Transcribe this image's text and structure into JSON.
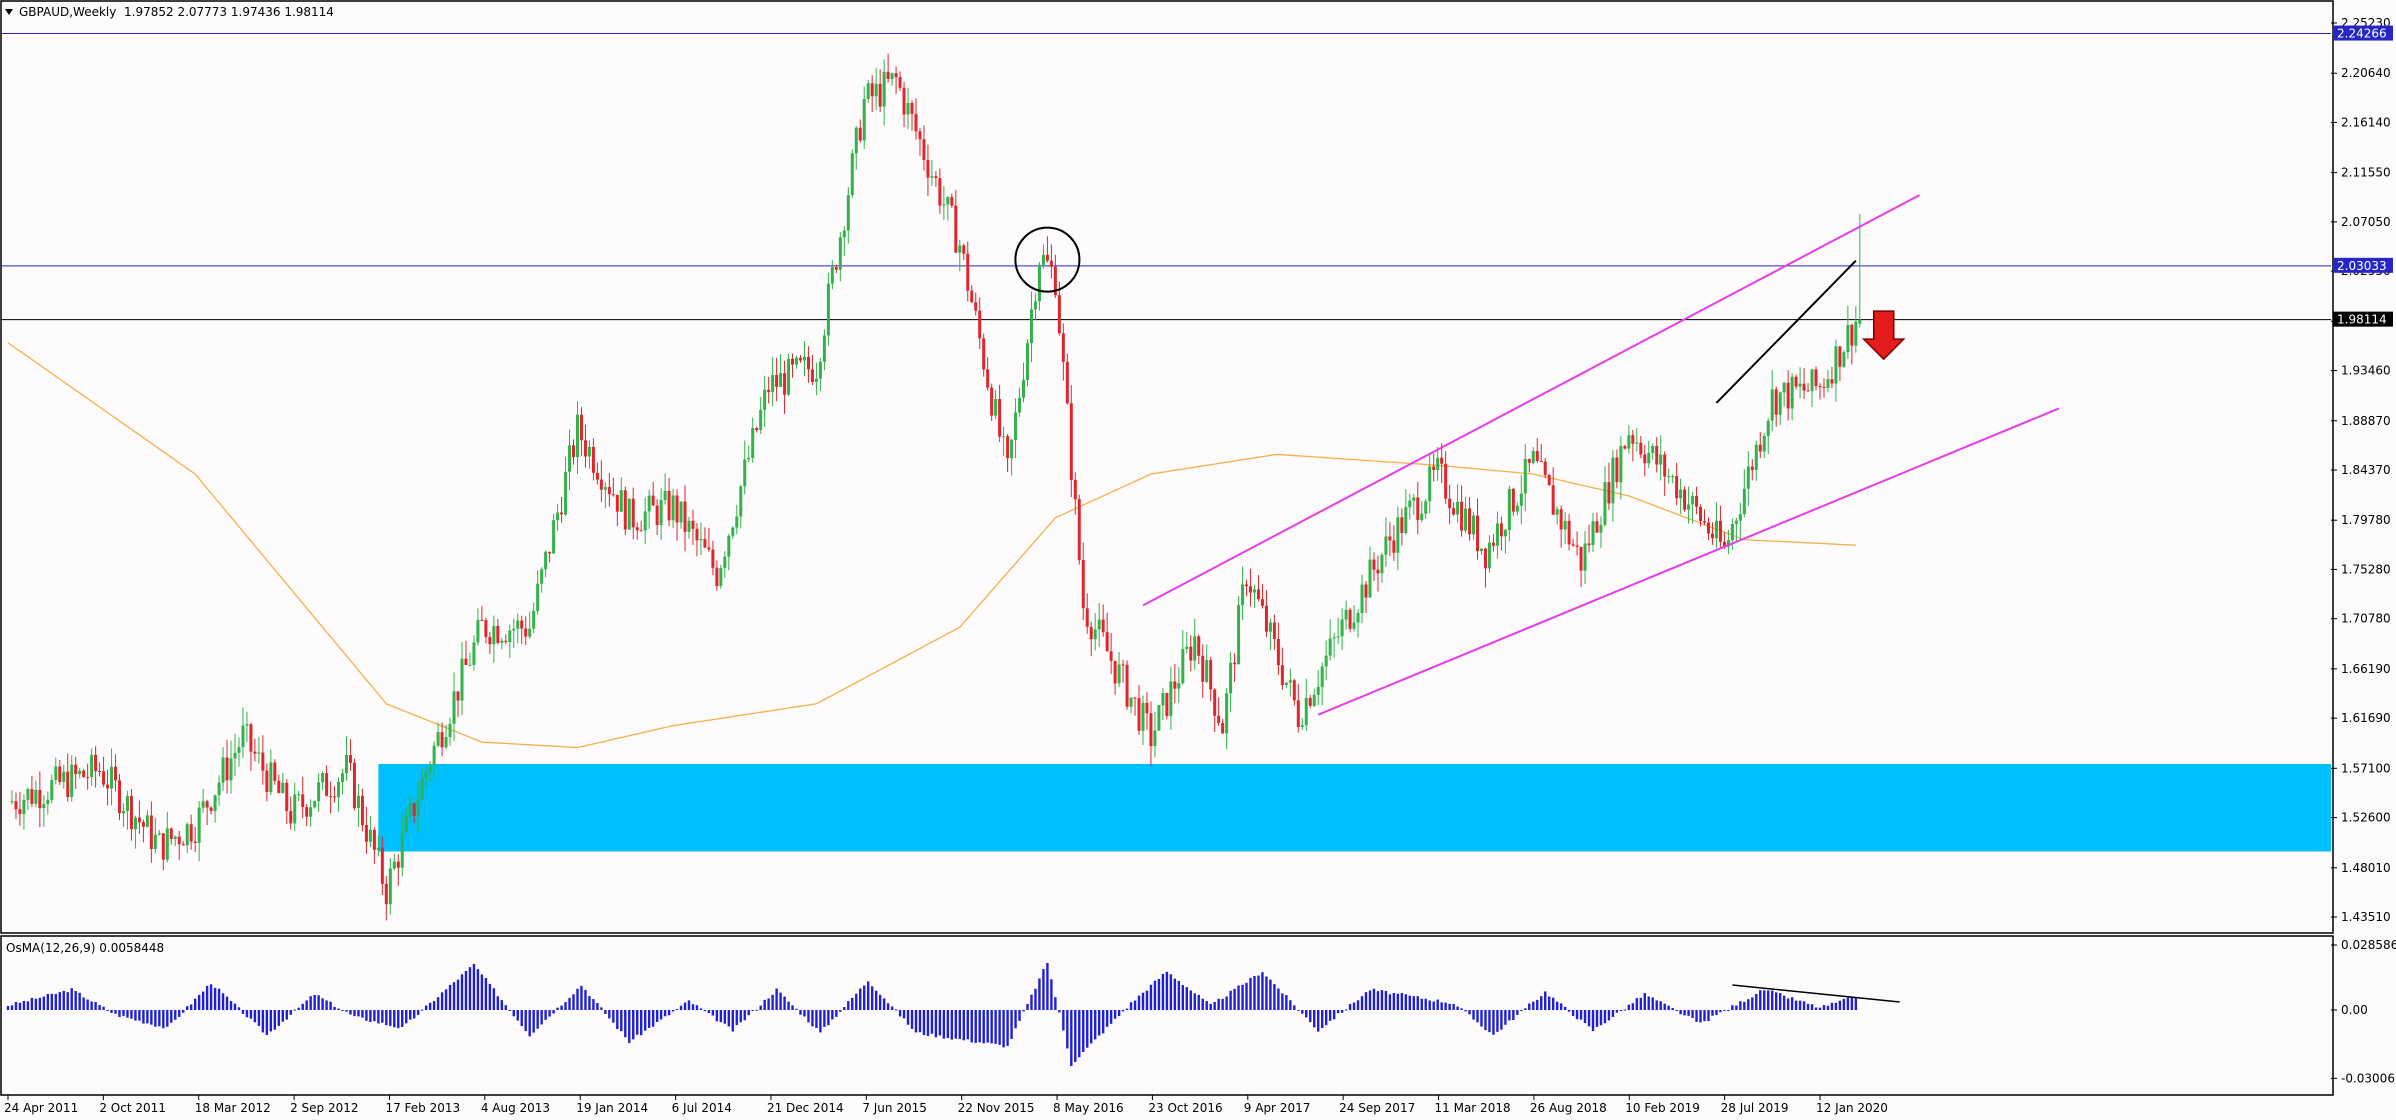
{
  "header": {
    "symbol_timeframe": "GBPAUD,Weekly",
    "ohlc": "1.97852 2.07773 1.97436 1.98114"
  },
  "indicator": {
    "label": "OsMA(12,26,9) 0.0058448"
  },
  "colors": {
    "background": "#fdfbfb",
    "bull": "#2fb34a",
    "bear": "#e0262d",
    "ma": "#f5b04a",
    "channel": "#e53de8",
    "level_blue": "#2626c8",
    "level_black": "#000000",
    "zone": "#00bfff",
    "osma": "#1f1fd8",
    "arrow": "#e51c1c"
  },
  "chart_data": [
    {
      "type": "candlestick",
      "title": "GBPAUD,Weekly",
      "ylim": [
        1.41,
        2.27
      ],
      "y_ticks": [
        "2.25230",
        "2.20640",
        "2.16140",
        "2.11550",
        "2.07050",
        "2.02550",
        "1.97960",
        "1.93460",
        "1.88870",
        "1.84370",
        "1.79780",
        "1.75280",
        "1.70780",
        "1.66190",
        "1.61690",
        "1.57100",
        "1.52600",
        "1.48010",
        "1.43510"
      ],
      "x_ticks": [
        "24 Apr 2011",
        "2 Oct 2011",
        "18 Mar 2012",
        "2 Sep 2012",
        "17 Feb 2013",
        "4 Aug 2013",
        "19 Jan 2014",
        "6 Jul 2014",
        "21 Dec 2014",
        "7 Jun 2015",
        "22 Nov 2015",
        "8 May 2016",
        "23 Oct 2016",
        "9 Apr 2017",
        "24 Sep 2017",
        "11 Mar 2018",
        "26 Aug 2018",
        "10 Feb 2019",
        "28 Jul 2019",
        "12 Jan 2020"
      ],
      "price_path": [
        {
          "date": "2011-04-24",
          "close": 1.54
        },
        {
          "date": "2011-10-02",
          "close": 1.57
        },
        {
          "date": "2012-01-15",
          "close": 1.5
        },
        {
          "date": "2012-03-18",
          "close": 1.52
        },
        {
          "date": "2012-06-10",
          "close": 1.6
        },
        {
          "date": "2012-09-02",
          "close": 1.53
        },
        {
          "date": "2012-12-10",
          "close": 1.57
        },
        {
          "date": "2013-02-17",
          "close": 1.46
        },
        {
          "date": "2013-05-05",
          "close": 1.58
        },
        {
          "date": "2013-08-04",
          "close": 1.7
        },
        {
          "date": "2013-10-27",
          "close": 1.7
        },
        {
          "date": "2014-01-19",
          "close": 1.88
        },
        {
          "date": "2014-04-20",
          "close": 1.8
        },
        {
          "date": "2014-07-06",
          "close": 1.81
        },
        {
          "date": "2014-09-21",
          "close": 1.75
        },
        {
          "date": "2014-12-21",
          "close": 1.92
        },
        {
          "date": "2015-03-15",
          "close": 1.94
        },
        {
          "date": "2015-06-07",
          "close": 2.18
        },
        {
          "date": "2015-08-02",
          "close": 2.2
        },
        {
          "date": "2015-11-22",
          "close": 2.05
        },
        {
          "date": "2016-02-14",
          "close": 1.84
        },
        {
          "date": "2016-04-10",
          "close": 2.04
        },
        {
          "date": "2016-05-08",
          "close": 2.02
        },
        {
          "date": "2016-06-26",
          "close": 1.72
        },
        {
          "date": "2016-10-23",
          "close": 1.6
        },
        {
          "date": "2017-01-08",
          "close": 1.69
        },
        {
          "date": "2017-02-26",
          "close": 1.61
        },
        {
          "date": "2017-04-09",
          "close": 1.75
        },
        {
          "date": "2017-07-09",
          "close": 1.62
        },
        {
          "date": "2017-09-24",
          "close": 1.7
        },
        {
          "date": "2017-12-17",
          "close": 1.78
        },
        {
          "date": "2018-03-11",
          "close": 1.84
        },
        {
          "date": "2018-06-03",
          "close": 1.77
        },
        {
          "date": "2018-08-26",
          "close": 1.85
        },
        {
          "date": "2018-11-18",
          "close": 1.76
        },
        {
          "date": "2019-02-10",
          "close": 1.88
        },
        {
          "date": "2019-05-05",
          "close": 1.83
        },
        {
          "date": "2019-07-28",
          "close": 1.77
        },
        {
          "date": "2019-10-20",
          "close": 1.91
        },
        {
          "date": "2020-01-12",
          "close": 1.92
        },
        {
          "date": "2020-03-15",
          "close": 1.98
        }
      ],
      "moving_average": [
        {
          "date": "2011-04-24",
          "value": 1.96
        },
        {
          "date": "2012-03-18",
          "value": 1.84
        },
        {
          "date": "2013-02-17",
          "value": 1.63
        },
        {
          "date": "2013-08-04",
          "value": 1.595
        },
        {
          "date": "2014-01-19",
          "value": 1.59
        },
        {
          "date": "2014-07-06",
          "value": 1.61
        },
        {
          "date": "2015-03-15",
          "value": 1.63
        },
        {
          "date": "2015-11-22",
          "value": 1.7
        },
        {
          "date": "2016-05-08",
          "value": 1.8
        },
        {
          "date": "2016-10-23",
          "value": 1.84
        },
        {
          "date": "2017-06-01",
          "value": 1.858
        },
        {
          "date": "2018-03-11",
          "value": 1.848
        },
        {
          "date": "2018-08-26",
          "value": 1.84
        },
        {
          "date": "2019-02-10",
          "value": 1.82
        },
        {
          "date": "2019-09-01",
          "value": 1.78
        },
        {
          "date": "2020-03-15",
          "value": 1.775
        }
      ],
      "horizontal_levels": [
        {
          "price": 2.24266,
          "label": "2.24266"
        },
        {
          "price": 2.03033,
          "label": "2.03033"
        },
        {
          "price": 1.98114,
          "label": "1.98114"
        }
      ],
      "demand_zone": [
        1.495,
        1.575
      ],
      "channel_upper": [
        {
          "date": "2016-10-09",
          "price": 1.72
        },
        {
          "date": "2020-07-05",
          "price": 2.095
        }
      ],
      "channel_lower": [
        {
          "date": "2017-08-13",
          "price": 1.62
        },
        {
          "date": "2021-03-07",
          "price": 1.9
        }
      ],
      "trendline_black": [
        {
          "date": "2019-07-14",
          "price": 1.905
        },
        {
          "date": "2020-03-15",
          "price": 2.035
        }
      ],
      "circle_annotation": {
        "date": "2016-04-24",
        "price": 2.036
      },
      "arrow": {
        "direction": "down",
        "date": "2020-05-03",
        "price": 1.945
      }
    },
    {
      "type": "bar",
      "title": "OsMA(12,26,9) 0.0058448",
      "ylim": [
        -0.0300678,
        0.0285861
      ],
      "y_ticks": [
        "0.0285861",
        "0.00",
        "-0.0300678"
      ],
      "trendline": [
        {
          "date": "2019-08-11",
          "value": 0.011
        },
        {
          "date": "2020-05-31",
          "value": 0.0035
        }
      ],
      "osma_path": [
        {
          "date": "2011-04-24",
          "value": 0.002
        },
        {
          "date": "2011-08-14",
          "value": 0.009
        },
        {
          "date": "2011-10-30",
          "value": -0.002
        },
        {
          "date": "2012-01-29",
          "value": -0.008
        },
        {
          "date": "2012-04-15",
          "value": 0.012
        },
        {
          "date": "2012-07-22",
          "value": -0.011
        },
        {
          "date": "2012-10-14",
          "value": 0.007
        },
        {
          "date": "2012-12-23",
          "value": -0.003
        },
        {
          "date": "2013-03-17",
          "value": -0.008
        },
        {
          "date": "2013-07-21",
          "value": 0.02
        },
        {
          "date": "2013-10-27",
          "value": -0.011
        },
        {
          "date": "2014-01-26",
          "value": 0.011
        },
        {
          "date": "2014-04-20",
          "value": -0.014
        },
        {
          "date": "2014-08-03",
          "value": 0.004
        },
        {
          "date": "2014-10-19",
          "value": -0.009
        },
        {
          "date": "2015-01-04",
          "value": 0.009
        },
        {
          "date": "2015-03-22",
          "value": -0.01
        },
        {
          "date": "2015-06-14",
          "value": 0.013
        },
        {
          "date": "2015-09-06",
          "value": -0.01
        },
        {
          "date": "2016-02-14",
          "value": -0.016
        },
        {
          "date": "2016-04-24",
          "value": 0.021
        },
        {
          "date": "2016-06-05",
          "value": -0.024
        },
        {
          "date": "2016-09-18",
          "value": 0.003
        },
        {
          "date": "2016-11-20",
          "value": 0.017
        },
        {
          "date": "2017-02-05",
          "value": 0.002
        },
        {
          "date": "2017-05-07",
          "value": 0.017
        },
        {
          "date": "2017-08-13",
          "value": -0.009
        },
        {
          "date": "2017-11-12",
          "value": 0.009
        },
        {
          "date": "2018-04-08",
          "value": 0.003
        },
        {
          "date": "2018-06-17",
          "value": -0.011
        },
        {
          "date": "2018-09-16",
          "value": 0.008
        },
        {
          "date": "2018-12-09",
          "value": -0.009
        },
        {
          "date": "2019-03-10",
          "value": 0.007
        },
        {
          "date": "2019-06-16",
          "value": -0.006
        },
        {
          "date": "2019-10-06",
          "value": 0.009
        },
        {
          "date": "2020-01-12",
          "value": 0.001
        },
        {
          "date": "2020-03-15",
          "value": 0.0058
        }
      ]
    }
  ]
}
